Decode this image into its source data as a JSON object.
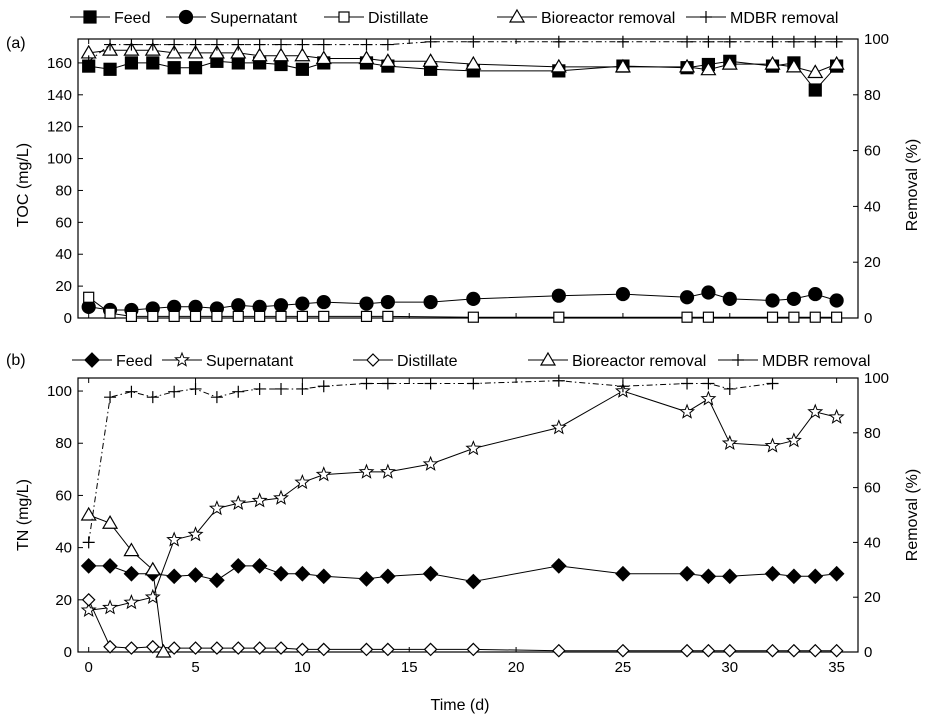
{
  "chart_data": [
    {
      "type": "line",
      "panel_label": "(a)",
      "xlabel": "",
      "ylabel": "TOC (mg/L)",
      "y2label": "Removal (%)",
      "xlim": [
        -0.5,
        36
      ],
      "ylim": [
        0,
        175
      ],
      "y2lim": [
        0,
        100
      ],
      "xticks": [
        0,
        5,
        10,
        15,
        20,
        25,
        30,
        35
      ],
      "yticks": [
        0,
        20,
        40,
        60,
        80,
        100,
        120,
        140,
        160
      ],
      "y2ticks": [
        0,
        20,
        40,
        60,
        80,
        100
      ],
      "legend_position": "top",
      "series": [
        {
          "name": "Feed",
          "axis": "left",
          "marker": "square-filled",
          "line": "solid",
          "x": [
            0,
            1,
            2,
            3,
            4,
            5,
            6,
            7,
            8,
            9,
            10,
            11,
            13,
            14,
            16,
            18,
            22,
            25,
            28,
            29,
            30,
            32,
            33,
            34,
            35
          ],
          "y": [
            158,
            156,
            160,
            160,
            157,
            157,
            161,
            160,
            160,
            159,
            156,
            160,
            160,
            158,
            156,
            155,
            155,
            158,
            157,
            159,
            161,
            158,
            160,
            143,
            158
          ]
        },
        {
          "name": "Supernatant",
          "axis": "left",
          "marker": "circle-filled",
          "line": "solid",
          "x": [
            0,
            1,
            2,
            3,
            4,
            5,
            6,
            7,
            8,
            9,
            10,
            11,
            13,
            14,
            16,
            18,
            22,
            25,
            28,
            29,
            30,
            32,
            33,
            34,
            35
          ],
          "y": [
            7,
            5,
            5,
            6,
            7,
            7,
            6,
            8,
            7,
            8,
            9,
            10,
            9,
            10,
            10,
            12,
            14,
            15,
            13,
            16,
            12,
            11,
            12,
            15,
            11
          ]
        },
        {
          "name": "Distillate",
          "axis": "left",
          "marker": "square-open",
          "line": "solid",
          "x": [
            0,
            1,
            2,
            3,
            4,
            5,
            6,
            7,
            8,
            9,
            10,
            11,
            13,
            14,
            18,
            22,
            28,
            29,
            32,
            33,
            34,
            35
          ],
          "y": [
            13,
            3,
            1,
            1,
            1,
            1,
            1,
            1,
            1,
            1,
            1,
            1,
            1,
            1,
            0.5,
            0.5,
            0.5,
            0.5,
            0.5,
            0.5,
            0.5,
            0.5
          ]
        },
        {
          "name": "Bioreactor removal",
          "axis": "right",
          "marker": "triangle-open",
          "line": "solid",
          "x": [
            0,
            1,
            2,
            3,
            4,
            5,
            6,
            7,
            8,
            9,
            10,
            11,
            13,
            14,
            16,
            18,
            22,
            25,
            28,
            29,
            30,
            32,
            33,
            34,
            35
          ],
          "y": [
            95,
            96,
            96,
            96,
            95,
            95,
            95,
            95,
            94,
            94,
            94,
            93,
            93,
            92,
            92,
            91,
            90,
            90,
            90,
            89,
            91,
            91,
            90,
            88,
            91
          ]
        },
        {
          "name": "MDBR removal",
          "axis": "right",
          "marker": "plus",
          "line": "dash-dot",
          "x": [
            0,
            1,
            2,
            3,
            4,
            5,
            6,
            7,
            8,
            9,
            10,
            11,
            13,
            14,
            16,
            18,
            22,
            25,
            28,
            29,
            30,
            32,
            33,
            34,
            35
          ],
          "y": [
            92,
            98,
            98,
            98,
            98,
            98,
            98,
            98,
            98,
            98,
            98,
            98,
            98,
            98,
            99,
            99,
            99,
            99,
            99,
            99,
            99,
            99,
            99,
            99,
            99
          ]
        }
      ],
      "xtick_labels_visible": false
    },
    {
      "type": "line",
      "panel_label": "(b)",
      "xlabel": "Time (d)",
      "ylabel": "TN (mg/L)",
      "y2label": "Removal (%)",
      "xlim": [
        -0.5,
        36
      ],
      "ylim": [
        0,
        105
      ],
      "y2lim": [
        0,
        100
      ],
      "xticks": [
        0,
        5,
        10,
        15,
        20,
        25,
        30,
        35
      ],
      "yticks": [
        0,
        20,
        40,
        60,
        80,
        100
      ],
      "y2ticks": [
        0,
        20,
        40,
        60,
        80,
        100
      ],
      "legend_position": "top",
      "series": [
        {
          "name": "Feed",
          "axis": "left",
          "marker": "diamond-filled",
          "line": "solid",
          "x": [
            0,
            1,
            2,
            3,
            4,
            5,
            6,
            7,
            8,
            9,
            10,
            11,
            13,
            14,
            16,
            18,
            22,
            25,
            28,
            29,
            30,
            32,
            33,
            34,
            35
          ],
          "y": [
            33,
            33,
            30,
            30,
            29,
            29.5,
            27.5,
            33,
            33,
            30,
            30,
            29,
            28,
            29,
            30,
            27,
            33,
            30,
            30,
            29,
            29,
            30,
            29,
            29,
            30
          ]
        },
        {
          "name": "Supernatant",
          "axis": "left",
          "marker": "star-open",
          "line": "solid",
          "x": [
            0,
            1,
            2,
            3,
            4,
            5,
            6,
            7,
            8,
            9,
            10,
            11,
            13,
            14,
            16,
            18,
            22,
            25,
            28,
            29,
            30,
            32,
            33,
            34,
            35
          ],
          "y": [
            16,
            17,
            19,
            21,
            43,
            45,
            55,
            57,
            58,
            59,
            65,
            68,
            69,
            69,
            72,
            78,
            86,
            100,
            92,
            97,
            80,
            79,
            81,
            92,
            90
          ]
        },
        {
          "name": "Distillate",
          "axis": "left",
          "marker": "diamond-open",
          "line": "solid",
          "x": [
            0,
            1,
            2,
            3,
            4,
            5,
            6,
            7,
            8,
            9,
            10,
            11,
            13,
            14,
            16,
            18,
            22,
            25,
            28,
            29,
            30,
            32,
            33,
            34,
            35
          ],
          "y": [
            20,
            2,
            1.5,
            2,
            1.5,
            1.5,
            1.5,
            1.5,
            1.5,
            1.5,
            1,
            1,
            1,
            1,
            1,
            1,
            0.5,
            0.5,
            0.5,
            0.5,
            0.5,
            0.5,
            0.5,
            0.5,
            0.5
          ]
        },
        {
          "name": "Bioreactor removal",
          "axis": "right",
          "marker": "triangle-open",
          "line": "solid",
          "x": [
            0,
            1,
            2,
            3,
            3.5
          ],
          "y": [
            50,
            47,
            37,
            30,
            0
          ]
        },
        {
          "name": "MDBR removal",
          "axis": "right",
          "marker": "plus",
          "line": "dash-dot",
          "x": [
            0,
            1,
            2,
            3,
            4,
            5,
            6,
            7,
            8,
            9,
            10,
            11,
            13,
            14,
            16,
            18,
            22,
            25,
            28,
            29,
            30,
            32
          ],
          "y": [
            40,
            93,
            95,
            93,
            95,
            96,
            93,
            95,
            96,
            96,
            96,
            97,
            98,
            98,
            98,
            98,
            99,
            97,
            98,
            98,
            96,
            98
          ]
        }
      ],
      "xtick_labels_visible": true
    }
  ]
}
